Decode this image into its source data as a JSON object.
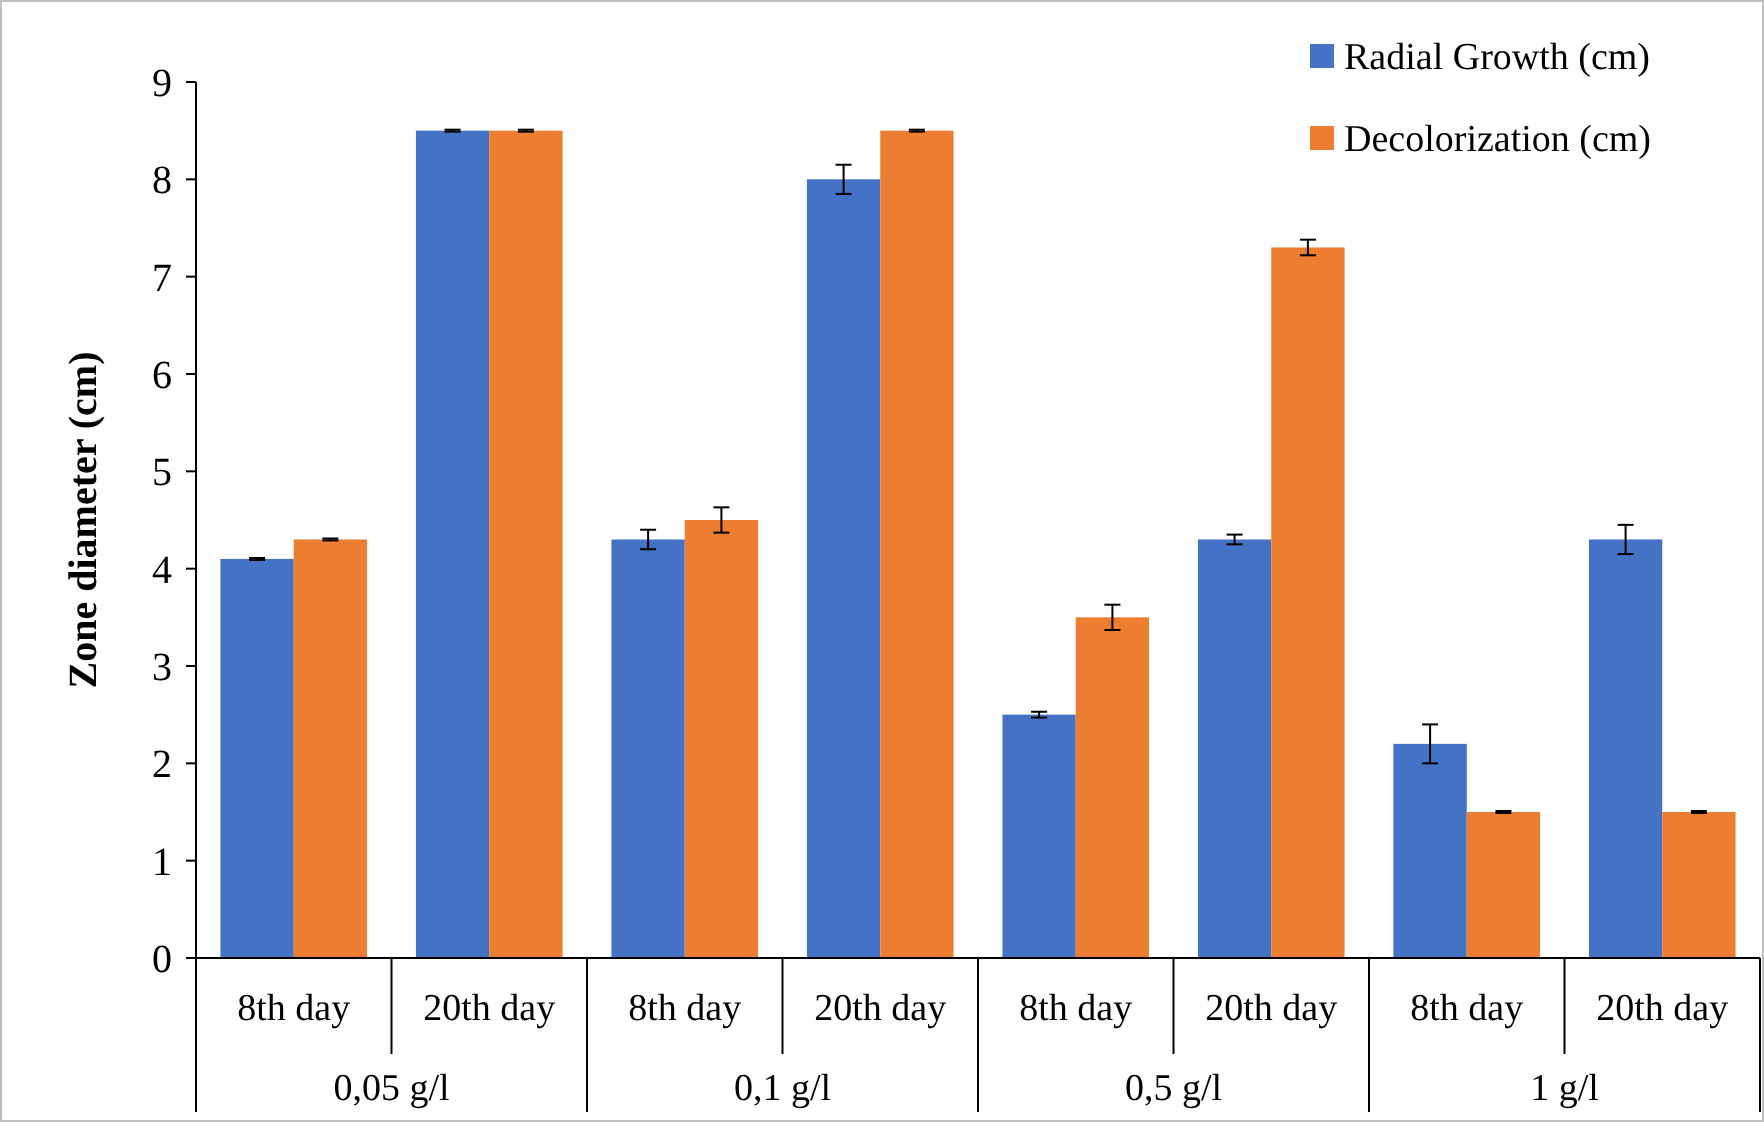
{
  "chart_data": {
    "type": "bar",
    "ylabel": "Zone diameter (cm)",
    "categories": [
      "8th day",
      "20th day",
      "8th day",
      "20th day",
      "8th day",
      "20th day",
      "8th day",
      "20th day"
    ],
    "annotations": [
      "0,05 g/l",
      "0,1 g/l",
      "0,5 g/l",
      "1 g/l"
    ],
    "ylim": [
      0,
      9
    ],
    "yticks": [
      0,
      1,
      2,
      3,
      4,
      5,
      6,
      7,
      8,
      9
    ],
    "grid": false,
    "legend": "top right",
    "series": [
      {
        "name": "Radial Growth (cm)",
        "color": "#4472c4",
        "values": [
          4.1,
          8.5,
          4.3,
          8.0,
          2.5,
          4.3,
          2.2,
          4.3
        ],
        "errors": [
          0.01,
          0.01,
          0.1,
          0.15,
          0.03,
          0.05,
          0.2,
          0.15
        ]
      },
      {
        "name": "Decolorization (cm)",
        "color": "#ed7d31",
        "values": [
          4.3,
          8.5,
          4.5,
          8.5,
          3.5,
          7.3,
          1.5,
          1.5
        ],
        "errors": [
          0.01,
          0.01,
          0.13,
          0.01,
          0.13,
          0.08,
          0.01,
          0.01
        ]
      }
    ]
  }
}
